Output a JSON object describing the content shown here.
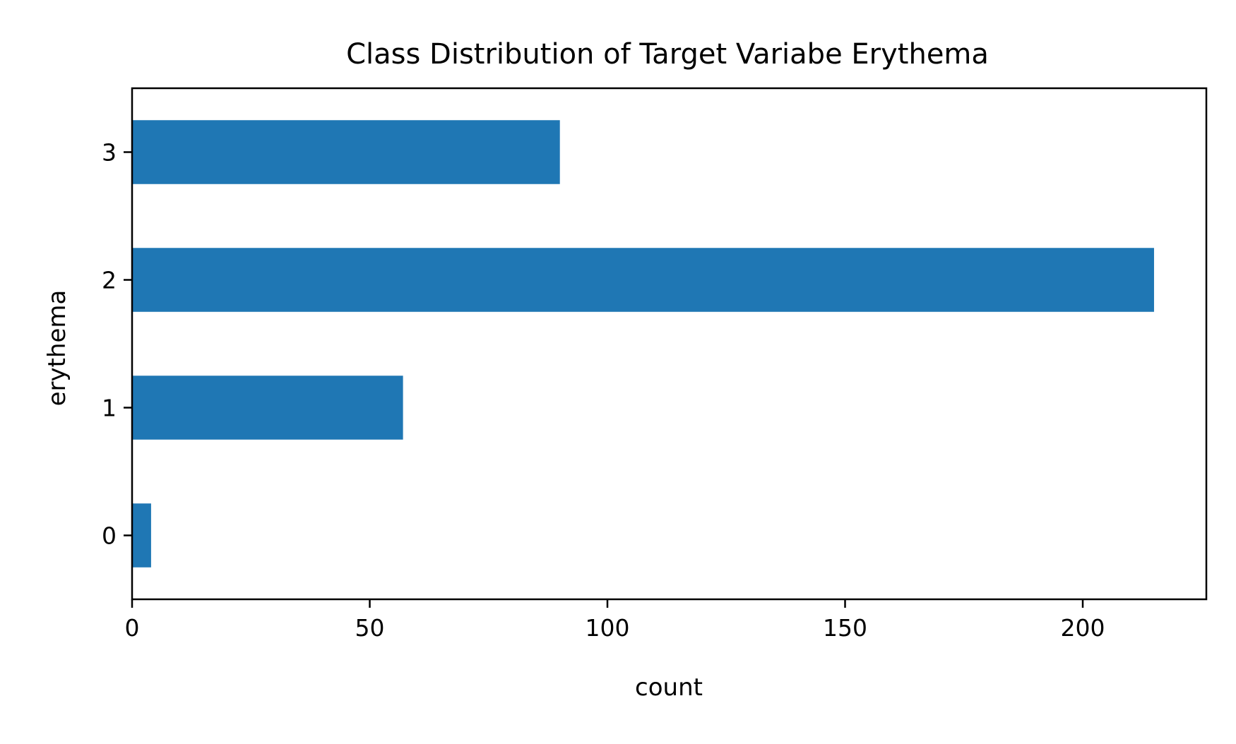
{
  "chart_data": {
    "type": "bar",
    "orientation": "horizontal",
    "title": "Class Distribution of Target Variabe Erythema",
    "xlabel": "count",
    "ylabel": "erythema",
    "categories": [
      "0",
      "1",
      "2",
      "3"
    ],
    "values": [
      4,
      57,
      215,
      90
    ],
    "xlim": [
      0,
      226
    ],
    "xticks": [
      "0",
      "50",
      "100",
      "150",
      "200"
    ],
    "grid": false,
    "legend": "none",
    "bar_color": "#1f77b4"
  }
}
